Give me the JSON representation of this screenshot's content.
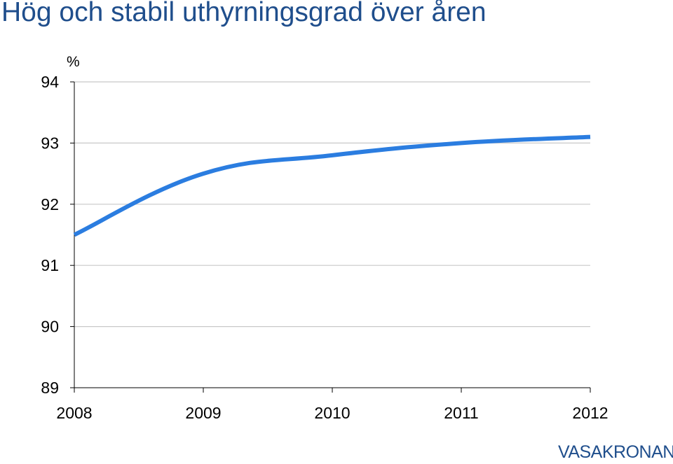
{
  "slide": {
    "title": "Hög och stabil uthyrningsgrad över åren",
    "logo_text": "VASAKRONAN"
  },
  "colors": {
    "title": "#1f4e8c",
    "line": "#2b7de0",
    "grid": "#c8c8c8",
    "axis": "#000000"
  },
  "chart_data": {
    "type": "line",
    "title": "Hög och stabil uthyrningsgrad över åren",
    "xlabel": "",
    "ylabel": "%",
    "x": [
      2008,
      2009,
      2010,
      2011,
      2012
    ],
    "x_tick_labels": [
      "2008",
      "2009",
      "2010",
      "2011",
      "2012"
    ],
    "ylim": [
      89,
      94
    ],
    "y_ticks": [
      89,
      90,
      91,
      92,
      93,
      94
    ],
    "y_tick_labels": [
      "89",
      "90",
      "91",
      "92",
      "93",
      "94"
    ],
    "grid": true,
    "legend": "none",
    "series": [
      {
        "name": "Uthyrningsgrad",
        "x": [
          2008,
          2009,
          2010,
          2011,
          2012
        ],
        "values": [
          91.5,
          92.5,
          92.8,
          93.0,
          93.1
        ]
      }
    ]
  }
}
